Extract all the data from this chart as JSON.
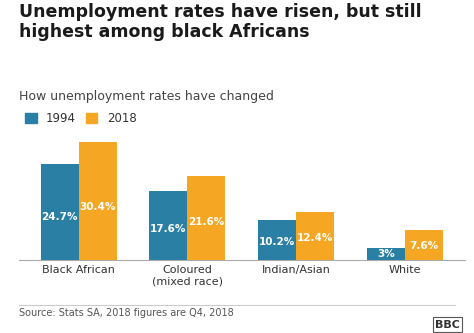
{
  "title": "Unemployment rates have risen, but still\nhighest among black Africans",
  "subtitle": "How unemployment rates have changed",
  "categories": [
    "Black African",
    "Coloured\n(mixed race)",
    "Indian/Asian",
    "White"
  ],
  "values_1994": [
    24.7,
    17.6,
    10.2,
    3.0
  ],
  "values_2018": [
    30.4,
    21.6,
    12.4,
    7.6
  ],
  "labels_1994": [
    "24.7%",
    "17.6%",
    "10.2%",
    "3%"
  ],
  "labels_2018": [
    "30.4%",
    "21.6%",
    "12.4%",
    "7.6%"
  ],
  "color_1994": "#2a7fa5",
  "color_2018": "#f5a623",
  "background_color": "#ffffff",
  "title_fontsize": 12.5,
  "subtitle_fontsize": 9.0,
  "legend_fontsize": 8.5,
  "bar_label_fontsize": 7.5,
  "tick_fontsize": 8.0,
  "source_text": "Source: Stats SA, 2018 figures are Q4, 2018",
  "bbc_text": "BBC",
  "ylim": [
    0,
    36
  ],
  "bar_width": 0.35
}
